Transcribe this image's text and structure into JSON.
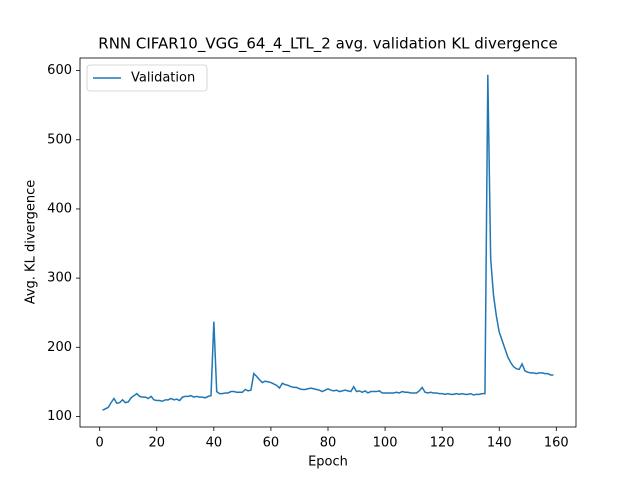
{
  "chart_data": {
    "type": "line",
    "title": "RNN CIFAR10_VGG_64_4_LTL_2 avg. validation KL divergence",
    "xlabel": "Epoch",
    "ylabel": "Avg. KL divergence",
    "x": [
      1,
      2,
      3,
      4,
      5,
      6,
      7,
      8,
      9,
      10,
      11,
      12,
      13,
      14,
      15,
      16,
      17,
      18,
      19,
      20,
      21,
      22,
      23,
      24,
      25,
      26,
      27,
      28,
      29,
      30,
      31,
      32,
      33,
      34,
      35,
      36,
      37,
      38,
      39,
      40,
      41,
      42,
      43,
      44,
      45,
      46,
      47,
      48,
      49,
      50,
      51,
      52,
      53,
      54,
      55,
      56,
      57,
      58,
      59,
      60,
      61,
      62,
      63,
      64,
      65,
      66,
      67,
      68,
      69,
      70,
      71,
      72,
      73,
      74,
      75,
      76,
      77,
      78,
      79,
      80,
      81,
      82,
      83,
      84,
      85,
      86,
      87,
      88,
      89,
      90,
      91,
      92,
      93,
      94,
      95,
      96,
      97,
      98,
      99,
      100,
      101,
      102,
      103,
      104,
      105,
      106,
      107,
      108,
      109,
      110,
      111,
      112,
      113,
      114,
      115,
      116,
      117,
      118,
      119,
      120,
      121,
      122,
      123,
      124,
      125,
      126,
      127,
      128,
      129,
      130,
      131,
      132,
      133,
      134,
      135,
      136,
      137,
      138,
      139,
      140,
      141,
      142,
      143,
      144,
      145,
      146,
      147,
      148,
      149,
      150,
      151,
      152,
      153,
      154,
      155,
      156,
      157,
      158,
      159
    ],
    "series": [
      {
        "name": "Validation",
        "color": "#1f77b4",
        "values": [
          109,
          111,
          113,
          120,
          126,
          119,
          120,
          124,
          120,
          121,
          127,
          130,
          133,
          129,
          128,
          128,
          126,
          129,
          124,
          123,
          123,
          122,
          124,
          124,
          126,
          124,
          125,
          123,
          128,
          129,
          129,
          130,
          128,
          129,
          128,
          128,
          127,
          129,
          130,
          237,
          136,
          133,
          133,
          134,
          134,
          136,
          136,
          135,
          135,
          135,
          139,
          137,
          138,
          162,
          158,
          153,
          149,
          151,
          150,
          149,
          147,
          145,
          141,
          148,
          146,
          145,
          143,
          142,
          142,
          140,
          139,
          139,
          140,
          141,
          140,
          139,
          138,
          136,
          138,
          140,
          138,
          137,
          138,
          136,
          137,
          138,
          137,
          136,
          143,
          136,
          137,
          135,
          137,
          134,
          136,
          136,
          136,
          137,
          134,
          134,
          134,
          134,
          134,
          135,
          134,
          136,
          135,
          135,
          134,
          134,
          134,
          137,
          142,
          135,
          134,
          135,
          134,
          134,
          133,
          133,
          132,
          133,
          132,
          132,
          133,
          132,
          133,
          132,
          132,
          133,
          131,
          132,
          132,
          133,
          133,
          594,
          328,
          275,
          245,
          222,
          210,
          198,
          186,
          178,
          172,
          169,
          168,
          176,
          166,
          164,
          163,
          163,
          162,
          163,
          163,
          162,
          162,
          160,
          160
        ]
      }
    ],
    "xlim": [
      -6.9,
      166.9
    ],
    "ylim": [
      84.75,
      618.25
    ],
    "xticks": [
      0,
      20,
      40,
      60,
      80,
      100,
      120,
      140,
      160
    ],
    "yticks": [
      100,
      200,
      300,
      400,
      500,
      600
    ],
    "legend": "upper left",
    "grid": false
  }
}
